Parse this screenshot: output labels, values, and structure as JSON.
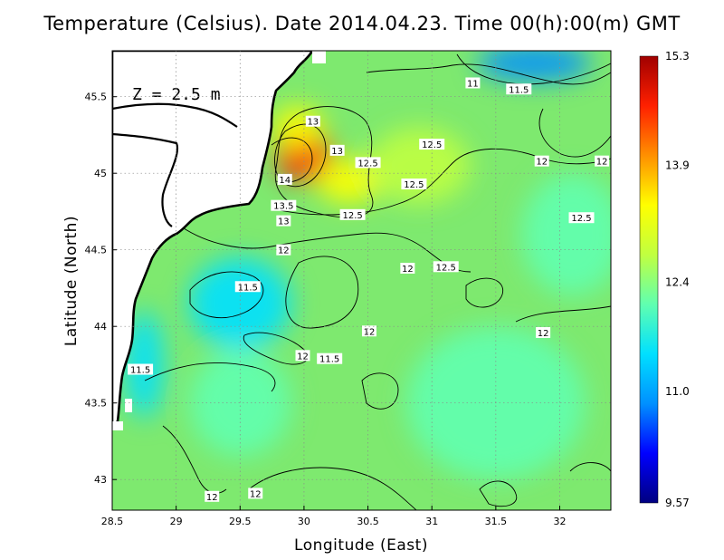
{
  "title": "Temperature (Celsius). Date 2014.04.23. Time 00(h):00(m)  GMT",
  "depth_label": "Z = 2.5 m",
  "chart_data": {
    "type": "heatmap",
    "title": "Temperature (Celsius). Date 2014.04.23. Time 00(h):00(m)  GMT",
    "xlabel": "Longitude (East)",
    "ylabel": "Latitude (North)",
    "xlim": [
      28.5,
      32.4
    ],
    "ylim": [
      42.8,
      45.8
    ],
    "x_ticks": [
      "28.5",
      "29",
      "29.5",
      "30",
      "30.5",
      "31",
      "31.5",
      "32"
    ],
    "y_ticks": [
      "43",
      "43.5",
      "44",
      "44.5",
      "45",
      "45.5"
    ],
    "grid": true,
    "colorbar": {
      "min": 9.57,
      "max": 15.3,
      "ticks": [
        "15.3",
        "13.9",
        "12.4",
        "11.0",
        "9.57"
      ],
      "colors": [
        "#000080",
        "#0000ff",
        "#0090ff",
        "#00e0ff",
        "#60ffb0",
        "#c0ff40",
        "#ffff00",
        "#ff9000",
        "#ff2000",
        "#a00000"
      ]
    },
    "field_blobs": [
      {
        "lon": 30.0,
        "lat": 45.12,
        "temp": 14.6,
        "r_lon": 0.22,
        "r_lat": 0.18
      },
      {
        "lon": 30.35,
        "lat": 44.95,
        "temp": 13.6,
        "r_lon": 0.25,
        "r_lat": 0.15
      },
      {
        "lon": 29.95,
        "lat": 45.3,
        "temp": 13.3,
        "r_lon": 0.2,
        "r_lat": 0.14
      },
      {
        "lon": 30.9,
        "lat": 45.05,
        "temp": 12.7,
        "r_lon": 0.4,
        "r_lat": 0.25
      },
      {
        "lon": 31.8,
        "lat": 45.72,
        "temp": 10.6,
        "r_lon": 0.45,
        "r_lat": 0.12
      },
      {
        "lon": 29.5,
        "lat": 44.15,
        "temp": 11.5,
        "r_lon": 0.4,
        "r_lat": 0.3
      },
      {
        "lon": 28.75,
        "lat": 43.75,
        "temp": 11.2,
        "r_lon": 0.15,
        "r_lat": 0.35
      },
      {
        "lon": 29.5,
        "lat": 43.5,
        "temp": 11.8,
        "r_lon": 0.4,
        "r_lat": 0.35
      },
      {
        "lon": 31.5,
        "lat": 43.5,
        "temp": 12.4,
        "r_lon": 0.7,
        "r_lat": 0.5
      },
      {
        "lon": 32.1,
        "lat": 44.6,
        "temp": 12.4,
        "r_lon": 0.4,
        "r_lat": 0.4
      }
    ],
    "contour_labels": [
      {
        "text": "11",
        "lon": 31.32,
        "lat": 45.59
      },
      {
        "text": "11.5",
        "lon": 31.68,
        "lat": 45.55
      },
      {
        "text": "13",
        "lon": 30.07,
        "lat": 45.34
      },
      {
        "text": "13",
        "lon": 30.26,
        "lat": 45.15
      },
      {
        "text": "12.5",
        "lon": 30.5,
        "lat": 45.07
      },
      {
        "text": "12.5",
        "lon": 31.0,
        "lat": 45.19
      },
      {
        "text": "12",
        "lon": 31.86,
        "lat": 45.08
      },
      {
        "text": "12",
        "lon": 32.33,
        "lat": 45.08
      },
      {
        "text": "14",
        "lon": 29.85,
        "lat": 44.96
      },
      {
        "text": "12.5",
        "lon": 30.86,
        "lat": 44.93
      },
      {
        "text": "13.5",
        "lon": 29.84,
        "lat": 44.79
      },
      {
        "text": "12.5",
        "lon": 30.38,
        "lat": 44.73
      },
      {
        "text": "13",
        "lon": 29.84,
        "lat": 44.69
      },
      {
        "text": "12.5",
        "lon": 32.17,
        "lat": 44.71
      },
      {
        "text": "12",
        "lon": 29.84,
        "lat": 44.5
      },
      {
        "text": "12",
        "lon": 30.81,
        "lat": 44.38
      },
      {
        "text": "12.5",
        "lon": 31.11,
        "lat": 44.39
      },
      {
        "text": "11.5",
        "lon": 29.56,
        "lat": 44.26
      },
      {
        "text": "12",
        "lon": 30.51,
        "lat": 43.97
      },
      {
        "text": "12",
        "lon": 31.87,
        "lat": 43.96
      },
      {
        "text": "12",
        "lon": 29.99,
        "lat": 43.81
      },
      {
        "text": "11.5",
        "lon": 30.2,
        "lat": 43.79
      },
      {
        "text": "11.5",
        "lon": 28.72,
        "lat": 43.72
      },
      {
        "text": "12",
        "lon": 29.28,
        "lat": 42.89
      },
      {
        "text": "12",
        "lon": 29.62,
        "lat": 42.91
      }
    ]
  }
}
